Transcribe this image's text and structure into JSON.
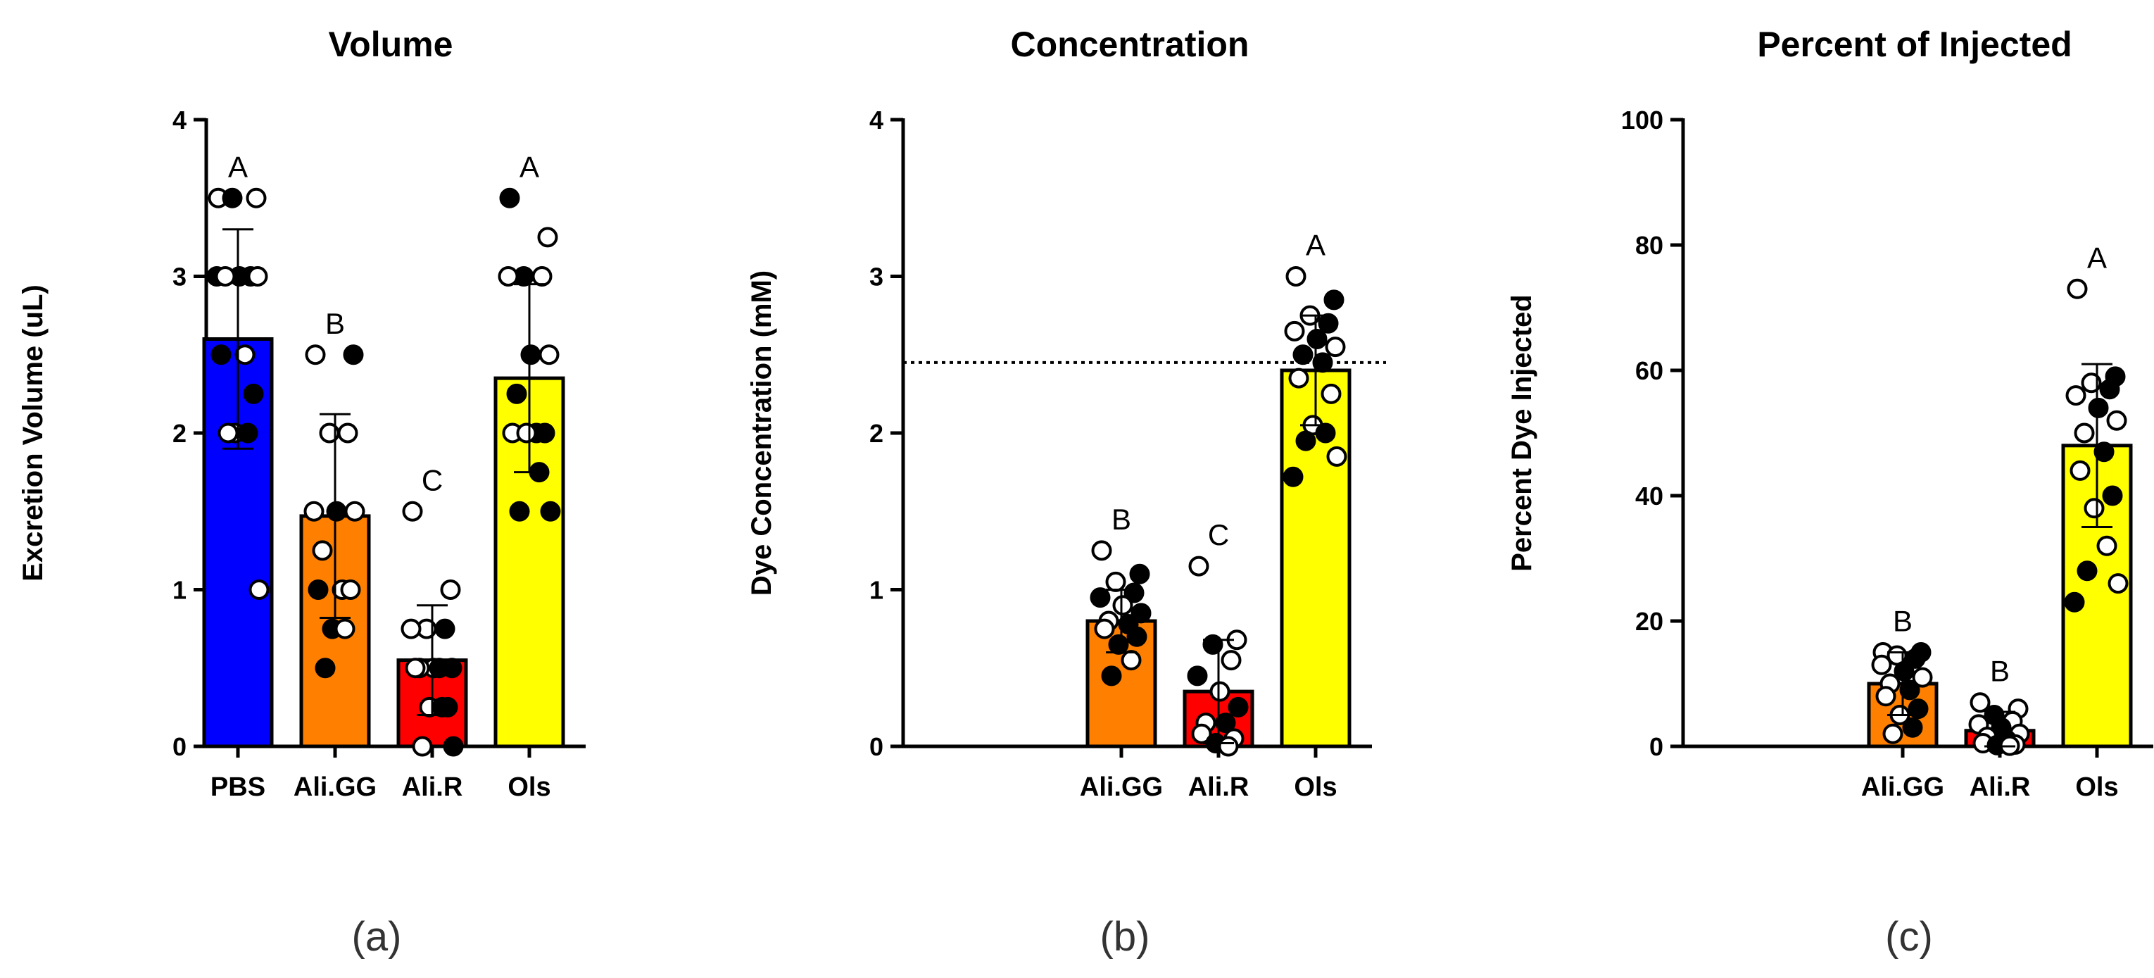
{
  "chart_data": [
    {
      "type": "bar",
      "panel_label": "(a)",
      "title": "Volume",
      "ylabel": "Excretion Volume (uL)",
      "xlabel": "",
      "ylim": [
        0,
        4
      ],
      "yticks": [
        0,
        1,
        2,
        3,
        4
      ],
      "ytick_labels": [
        "0",
        "1",
        "2",
        "3",
        "4"
      ],
      "categories": [
        "PBS",
        "Ali.GG",
        "Ali.R",
        "Ols"
      ],
      "values": [
        2.6,
        1.47,
        0.55,
        2.35
      ],
      "errors": [
        0.7,
        0.65,
        0.35,
        0.6
      ],
      "letters": [
        "A",
        "B",
        "C",
        "A"
      ],
      "colors": [
        "#0000ff",
        "#ff8000",
        "#ff0000",
        "#ffff00"
      ],
      "reference_line": null,
      "points": [
        {
          "v": [
            3.5,
            3.5,
            3.5,
            3.0,
            3.0,
            3.0,
            3.0,
            3.0,
            2.5,
            2.5,
            2.25,
            2.0,
            2.0,
            2.0,
            1.0
          ],
          "f": [
            0,
            0,
            1,
            1,
            1,
            1,
            0,
            0,
            0,
            1,
            1,
            0,
            1,
            0,
            0
          ]
        },
        {
          "v": [
            2.5,
            2.5,
            2.0,
            2.0,
            1.5,
            1.5,
            1.5,
            1.25,
            1.0,
            1.0,
            1.0,
            0.75,
            0.75,
            0.5
          ],
          "f": [
            0,
            1,
            0,
            0,
            0,
            1,
            0,
            0,
            0,
            1,
            0,
            1,
            0,
            1
          ]
        },
        {
          "v": [
            1.5,
            1.0,
            0.75,
            0.75,
            0.75,
            0.5,
            0.5,
            0.5,
            0.5,
            0.5,
            0.25,
            0.25,
            0.25,
            0.0,
            0.0
          ],
          "f": [
            0,
            0,
            0,
            1,
            0,
            0,
            1,
            0,
            1,
            0,
            1,
            0,
            1,
            0,
            1
          ]
        },
        {
          "v": [
            3.5,
            3.25,
            3.0,
            3.0,
            3.0,
            2.5,
            2.5,
            2.25,
            2.0,
            2.0,
            2.0,
            2.0,
            1.75,
            1.5,
            1.5
          ],
          "f": [
            1,
            0,
            1,
            0,
            0,
            1,
            0,
            1,
            1,
            0,
            1,
            0,
            1,
            1,
            1
          ]
        }
      ]
    },
    {
      "type": "bar",
      "panel_label": "(b)",
      "title": "Concentration",
      "ylabel": "Dye Concentration (mM)",
      "xlabel": "",
      "ylim": [
        0,
        4
      ],
      "yticks": [
        0,
        1,
        2,
        3,
        4
      ],
      "ytick_labels": [
        "0",
        "1",
        "2",
        "3",
        "4"
      ],
      "categories": [
        "",
        "Ali.GG",
        "Ali.R",
        "Ols"
      ],
      "values": [
        null,
        0.8,
        0.35,
        2.4
      ],
      "errors": [
        null,
        0.2,
        0.33,
        0.35
      ],
      "letters": [
        "",
        "B",
        "C",
        "A"
      ],
      "colors": [
        "#ffffff",
        "#ff8000",
        "#ff0000",
        "#ffff00"
      ],
      "reference_line": 2.45,
      "points": [
        {
          "v": [],
          "f": []
        },
        {
          "v": [
            1.25,
            1.1,
            1.05,
            0.98,
            0.95,
            0.9,
            0.85,
            0.8,
            0.78,
            0.75,
            0.7,
            0.65,
            0.55,
            0.45
          ],
          "f": [
            0,
            1,
            0,
            1,
            1,
            0,
            1,
            0,
            1,
            0,
            1,
            1,
            0,
            1
          ]
        },
        {
          "v": [
            1.15,
            0.68,
            0.65,
            0.55,
            0.45,
            0.35,
            0.25,
            0.15,
            0.15,
            0.08,
            0.05,
            0.02,
            0.0
          ],
          "f": [
            0,
            0,
            1,
            0,
            1,
            0,
            1,
            0,
            1,
            0,
            0,
            1,
            0
          ]
        },
        {
          "v": [
            3.0,
            2.85,
            2.75,
            2.7,
            2.65,
            2.6,
            2.55,
            2.5,
            2.45,
            2.35,
            2.25,
            2.05,
            2.0,
            1.95,
            1.85,
            1.72
          ],
          "f": [
            0,
            1,
            0,
            1,
            0,
            1,
            0,
            1,
            1,
            0,
            0,
            0,
            1,
            1,
            0,
            1
          ]
        }
      ]
    },
    {
      "type": "bar",
      "panel_label": "(c)",
      "title": "Percent of Injected",
      "ylabel": "Percent Dye Injected",
      "xlabel": "",
      "ylim": [
        0,
        100
      ],
      "yticks": [
        0,
        20,
        40,
        60,
        80,
        100
      ],
      "ytick_labels": [
        "0",
        "20",
        "40",
        "60",
        "80",
        "100"
      ],
      "categories": [
        "",
        "Ali.GG",
        "Ali.R",
        "Ols"
      ],
      "values": [
        null,
        10,
        2.5,
        48
      ],
      "errors": [
        null,
        5,
        3,
        13
      ],
      "letters": [
        "",
        "B",
        "B",
        "A"
      ],
      "colors": [
        "#ffffff",
        "#ff8000",
        "#ff0000",
        "#ffff00"
      ],
      "reference_line": null,
      "points": [
        {
          "v": [],
          "f": []
        },
        {
          "v": [
            15,
            15,
            14.5,
            14,
            13,
            12,
            11,
            10,
            9,
            8,
            6,
            5,
            3,
            2
          ],
          "f": [
            0,
            1,
            0,
            1,
            0,
            1,
            0,
            0,
            1,
            0,
            1,
            0,
            1,
            0
          ]
        },
        {
          "v": [
            7,
            6,
            5,
            4,
            3.5,
            3,
            2,
            1.5,
            1,
            0.5,
            0.3,
            0.2,
            0.1
          ],
          "f": [
            0,
            0,
            1,
            0,
            0,
            1,
            0,
            0,
            1,
            0,
            0,
            1,
            0
          ]
        },
        {
          "v": [
            73,
            59,
            58,
            57,
            56,
            54,
            52,
            50,
            47,
            44,
            40,
            38,
            32,
            28,
            26,
            23
          ],
          "f": [
            0,
            1,
            0,
            1,
            0,
            1,
            0,
            0,
            1,
            0,
            1,
            0,
            0,
            1,
            0,
            1
          ]
        }
      ]
    }
  ]
}
